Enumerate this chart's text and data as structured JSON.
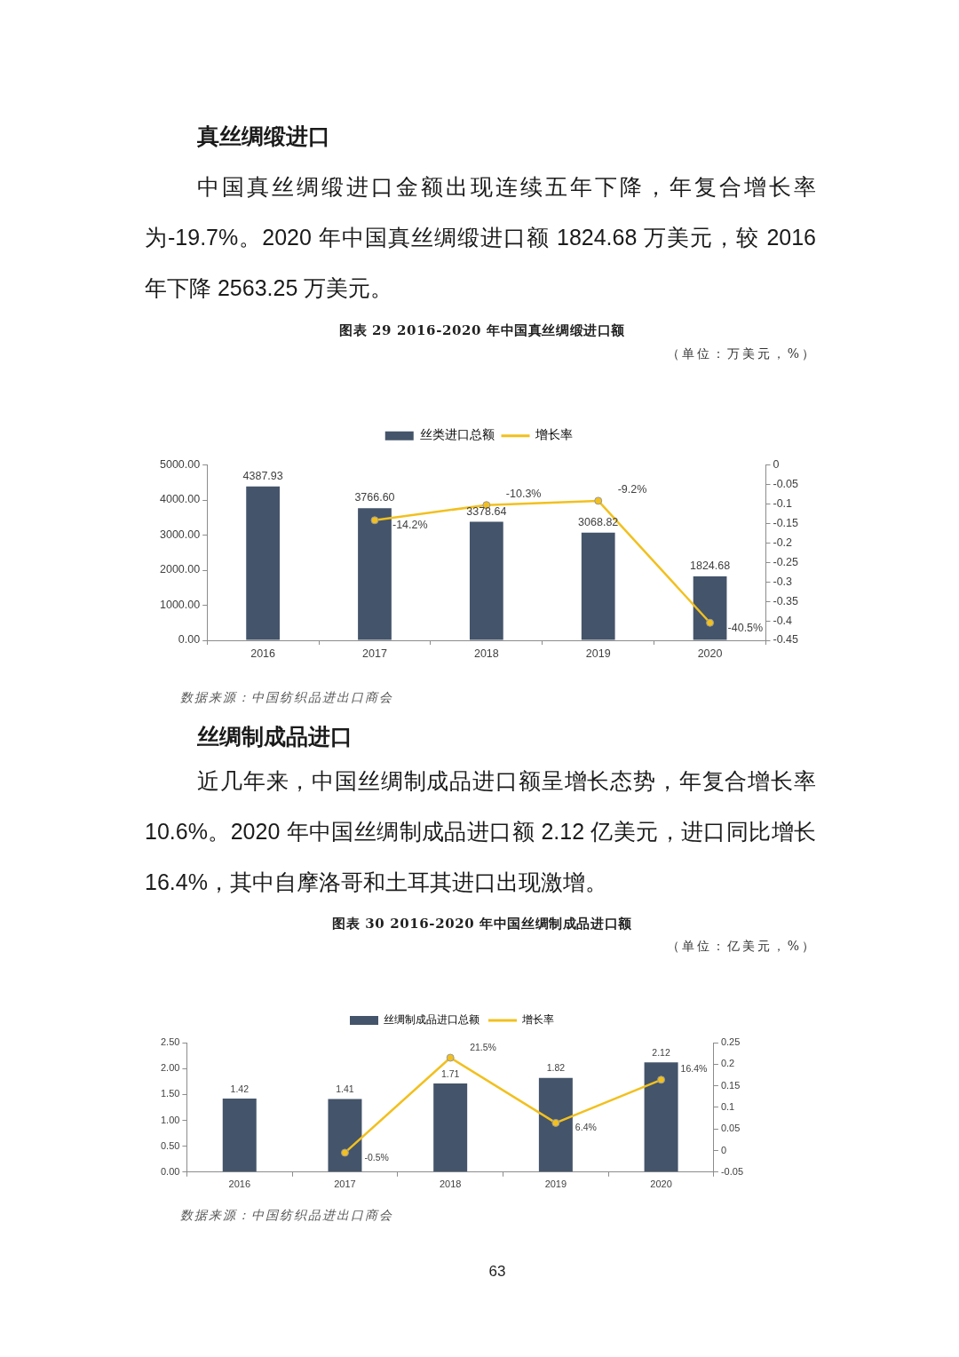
{
  "chart_data": [
    {
      "type": "bar",
      "title": "图表 29 2016-2020 年中国真丝绸缎进口额",
      "subtitle": "（单位：万美元，%）",
      "annotations": [
        "真丝绸缎进口",
        "中国真丝绸缎进口金额出现连续五年下降，年复合增长率为-19.7%。2020 年中国真丝绸缎进口额 1824.68 万美元，较 2016 年下降 2563.25 万美元。",
        "数据来源：中国纺织品进出口商会"
      ],
      "categories": [
        "2016",
        "2017",
        "2018",
        "2019",
        "2020"
      ],
      "series": [
        {
          "name": "丝类进口总额",
          "color": "#44546a",
          "values": [
            4387.93,
            3766.6,
            3378.64,
            3068.82,
            1824.68
          ],
          "value_labels": [
            "4387.93",
            "3766.60",
            "3378.64",
            "3068.82",
            "1824.68"
          ]
        },
        {
          "name": "增长率",
          "type": "line",
          "axis": "y2",
          "color": "#f2c01e",
          "values": [
            null,
            -0.142,
            -0.103,
            -0.092,
            -0.405
          ],
          "value_labels": [
            null,
            "-14.2%",
            "-10.3%",
            "-9.2%",
            "-40.5%"
          ]
        }
      ],
      "ylim": [
        0,
        5000
      ],
      "yticks": [
        {
          "value": 0,
          "label": "0.00"
        },
        {
          "value": 1000,
          "label": "1000.00"
        },
        {
          "value": 2000,
          "label": "2000.00"
        },
        {
          "value": 3000,
          "label": "3000.00"
        },
        {
          "value": 4000,
          "label": "4000.00"
        },
        {
          "value": 5000,
          "label": "5000.00"
        }
      ],
      "y2lim": [
        -0.45,
        0
      ],
      "y2ticks": [
        -0.45,
        -0.4,
        -0.35,
        -0.3,
        -0.25,
        -0.2,
        -0.15,
        -0.1,
        -0.05,
        0
      ],
      "legend": "top",
      "marker": "circle"
    },
    {
      "type": "bar",
      "title": "图表 30 2016-2020 年中国丝绸制成品进口额",
      "subtitle": "（单位：亿美元，%）",
      "annotations": [
        "丝绸制成品进口",
        "近几年来，中国丝绸制成品进口额呈增长态势，年复合增长率10.6%。2020 年中国丝绸制成品进口额 2.12 亿美元，进口同比增长16.4%，其中自摩洛哥和土耳其进口出现激增。",
        "数据来源：中国纺织品进出口商会",
        "63"
      ],
      "categories": [
        "2016",
        "2017",
        "2018",
        "2019",
        "2020"
      ],
      "series": [
        {
          "name": "丝绸制成品进口总额",
          "color": "#44546a",
          "values": [
            1.42,
            1.41,
            1.71,
            1.82,
            2.12
          ],
          "value_labels": [
            "1.42",
            "1.41",
            "1.71",
            "1.82",
            "2.12"
          ]
        },
        {
          "name": "增长率",
          "type": "line",
          "axis": "y2",
          "color": "#f2c01e",
          "values": [
            null,
            -0.005,
            0.215,
            0.064,
            0.164
          ],
          "value_labels": [
            null,
            "-0.5%",
            "21.5%",
            "6.4%",
            "16.4%"
          ]
        }
      ],
      "ylim": [
        0,
        2.5
      ],
      "yticks": [
        {
          "value": 0,
          "label": "0.00"
        },
        {
          "value": 0.5,
          "label": "0.50"
        },
        {
          "value": 1,
          "label": "1.00"
        },
        {
          "value": 1.5,
          "label": "1.50"
        },
        {
          "value": 2,
          "label": "2.00"
        },
        {
          "value": 2.5,
          "label": "2.50"
        }
      ],
      "y2lim": [
        -0.05,
        0.25
      ],
      "y2ticks": [
        -0.05,
        0,
        0.05,
        0.1,
        0.15,
        0.2,
        0.25
      ],
      "legend": "top",
      "marker": "circle"
    }
  ]
}
